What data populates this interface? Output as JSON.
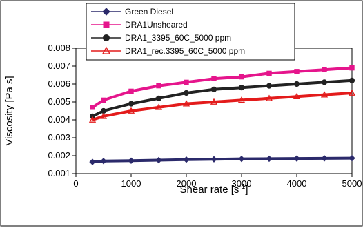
{
  "chart_data": {
    "type": "scatter",
    "xlabel": "Shear rate [s",
    "xlabel_sup": "-1",
    "xlabel_end": "]",
    "ylabel": "Viscosity [Pa s]",
    "xlim": [
      0,
      5000
    ],
    "ylim": [
      0.001,
      0.008
    ],
    "xticks": [
      "0",
      "1000",
      "2000",
      "3000",
      "4000",
      "5000"
    ],
    "yticks": [
      "0.001",
      "0.002",
      "0.003",
      "0.004",
      "0.005",
      "0.006",
      "0.007",
      "0.008"
    ],
    "grid": false,
    "legend_position": "top-center",
    "series": [
      {
        "name": "Green Diesel",
        "color": "#2b2a6b",
        "marker": "diamond",
        "x": [
          300,
          500,
          1000,
          1500,
          2000,
          2500,
          3000,
          3500,
          4000,
          4500,
          5000
        ],
        "y": [
          0.00165,
          0.0017,
          0.00172,
          0.00175,
          0.00178,
          0.0018,
          0.00182,
          0.00183,
          0.00184,
          0.00185,
          0.00186
        ]
      },
      {
        "name": "DRA1Unsheared",
        "color": "#e5158c",
        "marker": "square",
        "x": [
          300,
          500,
          1000,
          1500,
          2000,
          2500,
          3000,
          3500,
          4000,
          4500,
          5000
        ],
        "y": [
          0.0047,
          0.0051,
          0.0056,
          0.0059,
          0.0061,
          0.0063,
          0.0064,
          0.0066,
          0.0067,
          0.0068,
          0.0069
        ]
      },
      {
        "name": "DRA1_3395_60C_5000 ppm",
        "color": "#222222",
        "marker": "circle",
        "x": [
          300,
          500,
          1000,
          1500,
          2000,
          2500,
          3000,
          3500,
          4000,
          4500,
          5000
        ],
        "y": [
          0.0042,
          0.0045,
          0.0049,
          0.0052,
          0.0055,
          0.0057,
          0.0058,
          0.0059,
          0.006,
          0.0061,
          0.0062
        ]
      },
      {
        "name": "DRA1_rec.3395_60C_5000 ppm",
        "color": "#e31b1b",
        "marker": "triangle",
        "x": [
          300,
          500,
          1000,
          1500,
          2000,
          2500,
          3000,
          3500,
          4000,
          4500,
          5000
        ],
        "y": [
          0.004,
          0.0042,
          0.0045,
          0.0047,
          0.0049,
          0.005,
          0.0051,
          0.0052,
          0.0053,
          0.0054,
          0.0055
        ]
      }
    ]
  }
}
